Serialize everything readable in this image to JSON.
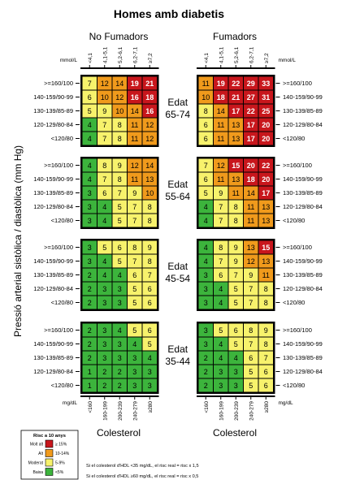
{
  "colors": {
    "green": "#3cb43c",
    "yellow": "#f7f26c",
    "orange": "#f09a1c",
    "red": "#c8161c"
  },
  "chart_data": {
    "type": "heatmap",
    "title": "Homes amb diabetis",
    "group_headers": [
      "No Fumadors",
      "Fumadors"
    ],
    "cholesterol_mmol_unit": "mmol/L",
    "cholesterol_mmol_bands": [
      "<4,1",
      "4,1-5,1",
      "5,2-6,1",
      "6,2-7,1",
      "≥7,2"
    ],
    "cholesterol_mgdl_unit": "mg/dL",
    "cholesterol_mgdl_bands": [
      "<160",
      "160-199",
      "200-239",
      "240-279",
      "≥280"
    ],
    "x_axis_label": "Colesterol",
    "y_axis_label": "Pressió arterial sistòlica / diastòlica (mm Hg)",
    "pressure_rows": [
      ">=160/100",
      "140-159/90-99",
      "130-139/85-89",
      "120-129/80-84",
      "<120/80"
    ],
    "age_groups": [
      {
        "label": "Edat",
        "range": "65-74",
        "no_smokers": [
          [
            7,
            12,
            14,
            19,
            21
          ],
          [
            6,
            10,
            12,
            16,
            18
          ],
          [
            5,
            9,
            10,
            14,
            16
          ],
          [
            4,
            7,
            8,
            11,
            12
          ],
          [
            4,
            7,
            8,
            11,
            12
          ]
        ],
        "smokers": [
          [
            11,
            19,
            22,
            29,
            33
          ],
          [
            10,
            18,
            21,
            27,
            31
          ],
          [
            8,
            14,
            17,
            22,
            25
          ],
          [
            6,
            11,
            13,
            17,
            20
          ],
          [
            6,
            11,
            13,
            17,
            20
          ]
        ]
      },
      {
        "label": "Edat",
        "range": "55-64",
        "no_smokers": [
          [
            4,
            8,
            9,
            12,
            14
          ],
          [
            4,
            7,
            8,
            11,
            13
          ],
          [
            3,
            6,
            7,
            9,
            10
          ],
          [
            3,
            4,
            5,
            7,
            8
          ],
          [
            3,
            4,
            5,
            7,
            8
          ]
        ],
        "smokers": [
          [
            7,
            12,
            15,
            20,
            22
          ],
          [
            6,
            11,
            13,
            18,
            20
          ],
          [
            5,
            9,
            11,
            14,
            17
          ],
          [
            4,
            7,
            8,
            11,
            13
          ],
          [
            4,
            7,
            8,
            11,
            13
          ]
        ]
      },
      {
        "label": "Edat",
        "range": "45-54",
        "no_smokers": [
          [
            3,
            5,
            6,
            8,
            9
          ],
          [
            3,
            4,
            5,
            7,
            8
          ],
          [
            2,
            4,
            4,
            6,
            7
          ],
          [
            2,
            3,
            3,
            5,
            6
          ],
          [
            2,
            3,
            3,
            5,
            6
          ]
        ],
        "smokers": [
          [
            4,
            8,
            9,
            13,
            15
          ],
          [
            4,
            7,
            9,
            12,
            13
          ],
          [
            3,
            6,
            7,
            9,
            11
          ],
          [
            3,
            4,
            5,
            7,
            8
          ],
          [
            3,
            4,
            5,
            7,
            8
          ]
        ]
      },
      {
        "label": "Edat",
        "range": "35-44",
        "no_smokers": [
          [
            2,
            3,
            4,
            5,
            6
          ],
          [
            2,
            3,
            3,
            4,
            5
          ],
          [
            2,
            3,
            3,
            3,
            4
          ],
          [
            1,
            2,
            2,
            3,
            3
          ],
          [
            1,
            2,
            2,
            3,
            3
          ]
        ],
        "smokers": [
          [
            3,
            5,
            6,
            8,
            9
          ],
          [
            3,
            4,
            5,
            7,
            8
          ],
          [
            2,
            4,
            4,
            6,
            7
          ],
          [
            2,
            3,
            3,
            5,
            6
          ],
          [
            2,
            3,
            3,
            5,
            6
          ]
        ]
      }
    ],
    "legend": {
      "title": "Risc a 10 anys",
      "items": [
        {
          "label": "Molt alt",
          "range": "≥ 15%",
          "color": "#c8161c"
        },
        {
          "label": "Alt",
          "range": "10-14%",
          "color": "#f09a1c"
        },
        {
          "label": "Moderat",
          "range": "5-9%",
          "color": "#f7f26c"
        },
        {
          "label": "Baixa",
          "range": "<5%",
          "color": "#3cb43c"
        }
      ]
    },
    "notes": [
      "Si el colesterol d'HDL <35 mg/dL, el risc real = risc x 1,5",
      "Si el colesterol d'HDL ≥60 mg/dL, el risc real = risc x 0,5"
    ]
  }
}
